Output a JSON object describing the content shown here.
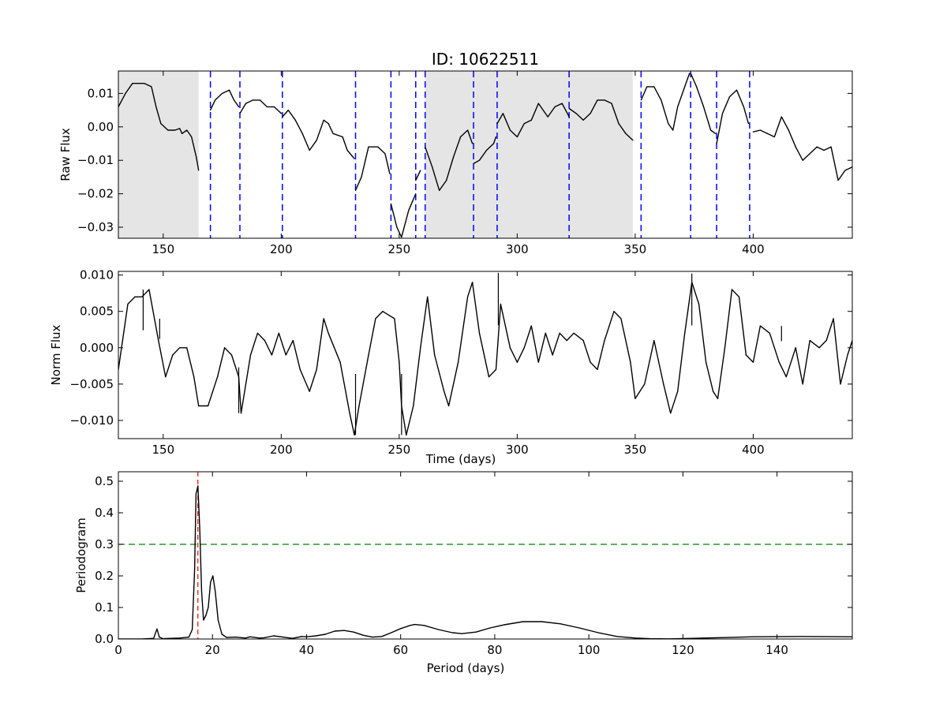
{
  "figure": {
    "title": "ID: 10622511"
  },
  "chart_data": [
    {
      "id": "raw",
      "type": "line",
      "title": "ID: 10622511",
      "ylabel": "Raw Flux",
      "xlabel": "",
      "xlim": [
        131,
        442
      ],
      "ylim": [
        -0.0333,
        0.0167
      ],
      "xticks": [
        150,
        200,
        250,
        300,
        350,
        400
      ],
      "yticks": [
        0.01,
        0.0,
        -0.01,
        -0.02,
        -0.03
      ],
      "ytick_labels": [
        "0.01",
        "0.00",
        "−0.01",
        "−0.02",
        "−0.03"
      ],
      "shaded_regions": [
        [
          131,
          165
        ],
        [
          261,
          349
        ]
      ],
      "dashed_vlines": [
        170,
        182.5,
        200.5,
        231.5,
        246.5,
        257,
        261,
        281.5,
        291.5,
        322,
        352.5,
        373.5,
        384.5,
        398.5
      ],
      "series": [
        {
          "x": [
            131,
            134,
            137,
            140,
            142,
            145,
            147,
            149,
            152,
            155,
            157,
            158,
            160,
            162,
            164,
            165,
            170,
            172,
            175,
            178,
            180,
            182,
            182.5,
            185,
            188,
            191,
            194,
            197,
            200,
            200.5,
            203,
            206,
            209,
            212,
            215,
            218,
            220,
            222,
            226,
            228,
            231,
            231.5,
            234,
            237,
            241,
            244,
            246,
            246.5,
            249,
            251,
            254,
            257,
            257,
            259,
            261,
            264,
            267,
            270,
            273,
            276,
            279,
            281,
            281.5,
            284,
            287,
            290,
            291,
            291.5,
            294,
            297,
            300,
            303,
            306,
            309,
            313,
            316,
            319,
            322,
            322,
            325,
            328,
            331,
            334,
            337,
            340,
            343,
            346,
            349,
            352.5,
            355,
            358,
            361,
            364,
            366,
            368,
            371,
            373,
            373.5,
            376,
            379,
            382,
            384,
            384.5,
            387,
            390,
            393,
            396,
            398,
            400,
            403,
            406,
            409,
            412,
            415,
            418,
            421,
            424,
            427,
            430,
            433,
            436,
            439,
            442
          ],
          "values": [
            0.006,
            0.01,
            0.013,
            0.013,
            0.013,
            0.012,
            0.006,
            0.001,
            -0.001,
            -0.001,
            -0.0005,
            -0.002,
            -0.001,
            -0.003,
            -0.009,
            -0.013,
            0.005,
            0.008,
            0.01,
            0.011,
            0.008,
            0.006,
            0.004,
            0.007,
            0.008,
            0.008,
            0.006,
            0.006,
            0.004,
            0.003,
            0.005,
            0.002,
            -0.002,
            -0.007,
            -0.004,
            0.002,
            0.001,
            -0.002,
            -0.003,
            -0.007,
            -0.0095,
            -0.019,
            -0.015,
            -0.006,
            -0.006,
            -0.008,
            -0.014,
            -0.023,
            -0.03,
            -0.033,
            -0.025,
            -0.02,
            -0.016,
            -0.013,
            -0.006,
            -0.012,
            -0.019,
            -0.016,
            -0.009,
            -0.003,
            -0.001,
            -0.005,
            -0.011,
            -0.01,
            -0.007,
            -0.005,
            -0.003,
            0.001,
            0.004,
            -0.001,
            -0.003,
            0.001,
            0.002,
            0.007,
            0.003,
            0.006,
            0.007,
            0.003,
            0.0055,
            0.004,
            0.002,
            0.004,
            0.008,
            0.008,
            0.007,
            0.001,
            -0.002,
            -0.004,
            0.008,
            0.012,
            0.012,
            0.008,
            0.001,
            -0.001,
            0.006,
            0.012,
            0.016,
            0.016,
            0.012,
            0.006,
            -0.001,
            -0.002,
            -0.005,
            0.004,
            0.009,
            0.011,
            0.006,
            0.001,
            -0.0015,
            -0.001,
            -0.002,
            -0.003,
            0.003,
            -0.001,
            -0.006,
            -0.01,
            -0.008,
            -0.006,
            -0.007,
            -0.006,
            -0.016,
            -0.013,
            -0.012
          ],
          "break_before_index": [
            16,
            22,
            29,
            41,
            47,
            52,
            54,
            62,
            67,
            78,
            88,
            97,
            102,
            108
          ]
        }
      ]
    },
    {
      "id": "norm",
      "type": "line",
      "ylabel": "Norm Flux",
      "xlabel": "Time (days)",
      "xlim": [
        131,
        442
      ],
      "ylim": [
        -0.0125,
        0.0105
      ],
      "xticks": [
        150,
        200,
        250,
        300,
        350,
        400
      ],
      "yticks": [
        0.01,
        0.005,
        0.0,
        -0.005,
        -0.01
      ],
      "ytick_labels": [
        "0.010",
        "0.005",
        "0.000",
        "−0.005",
        "−0.010"
      ],
      "series": [
        {
          "x": [
            131,
            135,
            138,
            141,
            144,
            148,
            151,
            154,
            157,
            160,
            163,
            165,
            169,
            173,
            176,
            179,
            182,
            183,
            187,
            190,
            193,
            196,
            199,
            202,
            205,
            208,
            212,
            215,
            218,
            220,
            225,
            229,
            231,
            233,
            237,
            240,
            243,
            248,
            250,
            251,
            253,
            256,
            259,
            262,
            265,
            269,
            271,
            275,
            279,
            281,
            284,
            288,
            291,
            293,
            297,
            300,
            303,
            306,
            309,
            312,
            315,
            318,
            321,
            324,
            328,
            331,
            334,
            337,
            341,
            344,
            348,
            350,
            354,
            358,
            362,
            365,
            368,
            371,
            374,
            377,
            380,
            383,
            385,
            388,
            391,
            394,
            397,
            400,
            403,
            407,
            411,
            414,
            418,
            421,
            424,
            428,
            431,
            434,
            437,
            440,
            442
          ],
          "values": [
            -0.003,
            0.006,
            0.007,
            0.007,
            0.008,
            0.001,
            -0.004,
            -0.001,
            0.0,
            0.0,
            -0.004,
            -0.008,
            -0.008,
            -0.004,
            0.0,
            -0.001,
            -0.004,
            -0.009,
            -0.001,
            0.002,
            0.001,
            -0.001,
            0.002,
            -0.001,
            0.001,
            -0.003,
            -0.006,
            -0.003,
            0.004,
            0.002,
            -0.002,
            -0.009,
            -0.012,
            -0.008,
            -0.001,
            0.004,
            0.005,
            0.004,
            -0.002,
            -0.008,
            -0.012,
            -0.008,
            0.0,
            0.007,
            -0.001,
            -0.006,
            -0.008,
            -0.002,
            0.007,
            0.009,
            0.002,
            -0.004,
            -0.003,
            0.006,
            0.0,
            -0.002,
            0.0,
            0.003,
            -0.002,
            0.002,
            -0.001,
            0.002,
            0.001,
            0.002,
            0.001,
            -0.002,
            -0.003,
            0.001,
            0.005,
            0.004,
            -0.002,
            -0.007,
            -0.005,
            0.001,
            -0.005,
            -0.009,
            -0.006,
            0.002,
            0.009,
            0.006,
            -0.002,
            -0.006,
            -0.007,
            0.0,
            0.008,
            0.007,
            -0.001,
            -0.002,
            0.003,
            0.002,
            -0.002,
            -0.004,
            0.0,
            -0.005,
            0.001,
            0.0,
            0.001,
            0.004,
            -0.005,
            -0.001,
            0.001
          ],
          "spikes": [
            [
              141.5,
              0.008
            ],
            [
              148.5,
              0.004
            ],
            [
              182,
              -0.009
            ],
            [
              231.5,
              -0.012
            ],
            [
              251,
              -0.012
            ],
            [
              292,
              0.0103
            ],
            [
              374,
              0.0102
            ],
            [
              412,
              0.003
            ]
          ]
        }
      ]
    },
    {
      "id": "periodogram",
      "type": "line",
      "ylabel": "Periodogram",
      "xlabel": "Period (days)",
      "xlim": [
        0,
        156
      ],
      "ylim": [
        0,
        0.53
      ],
      "xticks": [
        0,
        20,
        40,
        60,
        80,
        100,
        120,
        140
      ],
      "yticks": [
        0.0,
        0.1,
        0.2,
        0.3,
        0.4,
        0.5
      ],
      "ytick_labels": [
        "0.0",
        "0.1",
        "0.2",
        "0.3",
        "0.4",
        "0.5"
      ],
      "xtick_labels": [
        "0",
        "20",
        "40",
        "60",
        "80",
        "100",
        "120",
        "140"
      ],
      "threshold": 0.3,
      "peak_period": 16.9,
      "series": [
        {
          "x": [
            0,
            5,
            7.5,
            8.2,
            8.7,
            9.5,
            11,
            13,
            15,
            15.7,
            16.2,
            16.5,
            16.9,
            17.3,
            17.7,
            18.1,
            18.6,
            19.1,
            19.6,
            20.1,
            20.6,
            21.2,
            22,
            23,
            25,
            27,
            28,
            30,
            31,
            33,
            35,
            37,
            39,
            40,
            42,
            44,
            46,
            48,
            50,
            52,
            54,
            56,
            58,
            60,
            62,
            63,
            65,
            68,
            71,
            73,
            76,
            79,
            82,
            86,
            90,
            94,
            98,
            102,
            106,
            110,
            113,
            117,
            122,
            127,
            135,
            145,
            156
          ],
          "values": [
            0,
            0,
            0.002,
            0.032,
            0.006,
            0.001,
            0.002,
            0.003,
            0.006,
            0.03,
            0.22,
            0.46,
            0.485,
            0.35,
            0.15,
            0.06,
            0.075,
            0.1,
            0.18,
            0.2,
            0.15,
            0.06,
            0.015,
            0.005,
            0.006,
            0.003,
            0.007,
            0.003,
            0.004,
            0.01,
            0.006,
            0.002,
            0.008,
            0.007,
            0.01,
            0.015,
            0.025,
            0.027,
            0.022,
            0.012,
            0.006,
            0.008,
            0.02,
            0.033,
            0.043,
            0.046,
            0.043,
            0.03,
            0.02,
            0.017,
            0.022,
            0.035,
            0.045,
            0.055,
            0.055,
            0.048,
            0.035,
            0.02,
            0.008,
            0.003,
            0.001,
            0.0005,
            0.002,
            0.004,
            0.007,
            0.008,
            0.007
          ]
        }
      ]
    }
  ]
}
